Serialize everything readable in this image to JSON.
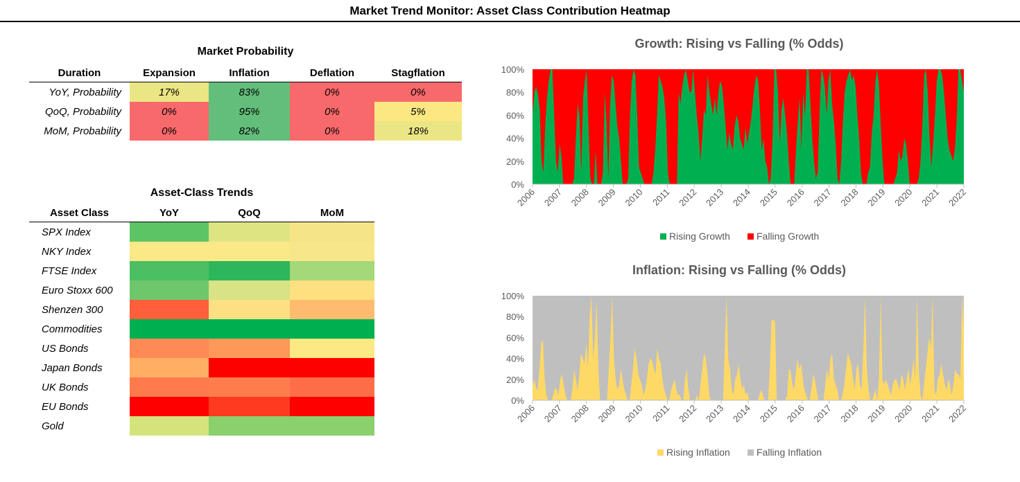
{
  "page_title": "Market Trend Monitor: Asset Class Contribution Heatmap",
  "probability_table": {
    "title": "Market Probability",
    "headers": [
      "Duration",
      "Expansion",
      "Inflation",
      "Deflation",
      "Stagflation"
    ],
    "rows": [
      {
        "label": "YoY, Probability",
        "values": [
          "17%",
          "83%",
          "0%",
          "0%"
        ],
        "colors": [
          "#ebe684",
          "#63be7b",
          "#f8696b",
          "#f8696b"
        ]
      },
      {
        "label": "QoQ, Probability",
        "values": [
          "0%",
          "95%",
          "0%",
          "5%"
        ],
        "colors": [
          "#f8696b",
          "#63be7b",
          "#f8696b",
          "#fbe883"
        ]
      },
      {
        "label": "MoM, Probability",
        "values": [
          "0%",
          "82%",
          "0%",
          "18%"
        ],
        "colors": [
          "#f8696b",
          "#63be7b",
          "#f8696b",
          "#ebe684"
        ]
      }
    ]
  },
  "trends_table": {
    "title": "Asset-Class Trends",
    "headers": [
      "Asset Class",
      "YoY",
      "QoQ",
      "MoM"
    ],
    "rows": [
      {
        "label": "SPX Index",
        "colors": [
          "#5dc466",
          "#dde583",
          "#f6e586"
        ]
      },
      {
        "label": "NKY Index",
        "colors": [
          "#fbe886",
          "#fbe886",
          "#f7e68a"
        ]
      },
      {
        "label": "FTSE Index",
        "colors": [
          "#4bbf62",
          "#2db75a",
          "#a5d878"
        ]
      },
      {
        "label": "Euro Stoxx 600",
        "colors": [
          "#6fc76b",
          "#d7e385",
          "#fde080"
        ]
      },
      {
        "label": "Shenzen 300",
        "colors": [
          "#ff5f3a",
          "#fde082",
          "#ffbb6e"
        ]
      },
      {
        "label": "Commodities",
        "colors": [
          "#00b050",
          "#00b050",
          "#00b050"
        ]
      },
      {
        "label": "US Bonds",
        "colors": [
          "#ff8a55",
          "#ff9858",
          "#fde984"
        ]
      },
      {
        "label": "Japan Bonds",
        "colors": [
          "#ffae64",
          "#ff0000",
          "#ff0000"
        ]
      },
      {
        "label": "UK Bonds",
        "colors": [
          "#ff7a4c",
          "#ff7c4d",
          "#ff6e47"
        ]
      },
      {
        "label": "EU Bonds",
        "colors": [
          "#ff0000",
          "#ff3a21",
          "#ff0000"
        ]
      },
      {
        "label": "Gold",
        "colors": [
          "#d5e37d",
          "#8ad06c",
          "#8ad06c"
        ]
      }
    ]
  },
  "chart_data": [
    {
      "type": "area",
      "title": "Growth: Rising vs Falling (% Odds)",
      "xlabel": "",
      "ylabel": "",
      "ylim": [
        0,
        100
      ],
      "ytick_labels": [
        "0%",
        "20%",
        "40%",
        "60%",
        "80%",
        "100%"
      ],
      "xtick_labels": [
        "2006",
        "2007",
        "2008",
        "2009",
        "2010",
        "2011",
        "2012",
        "2013",
        "2014",
        "2015",
        "2016",
        "2017",
        "2018",
        "2019",
        "2020",
        "2021",
        "2022"
      ],
      "x_start": 2006,
      "x_end": 2022,
      "series": [
        {
          "name": "Rising Growth",
          "color": "#00b050",
          "values": [
            62,
            80,
            85,
            78,
            65,
            20,
            10,
            50,
            75,
            90,
            100,
            100,
            60,
            20,
            10,
            35,
            25,
            0,
            0,
            0,
            0,
            0,
            0,
            5,
            40,
            70,
            60,
            10,
            75,
            90,
            100,
            50,
            5,
            0,
            0,
            30,
            0,
            0,
            0,
            10,
            80,
            55,
            5,
            70,
            95,
            90,
            70,
            50,
            40,
            20,
            0,
            0,
            0,
            5,
            60,
            90,
            100,
            95,
            60,
            15,
            10,
            5,
            0,
            0,
            0,
            0,
            0,
            10,
            30,
            60,
            95,
            90,
            85,
            75,
            55,
            10,
            0,
            0,
            0,
            0,
            0,
            80,
            70,
            85,
            95,
            100,
            90,
            80,
            80,
            100,
            80,
            60,
            45,
            20,
            40,
            65,
            60,
            95,
            80,
            70,
            60,
            75,
            60,
            80,
            90,
            85,
            70,
            50,
            30,
            45,
            35,
            30,
            50,
            60,
            55,
            40,
            35,
            30,
            50,
            35,
            45,
            55,
            70,
            85,
            95,
            90,
            65,
            30,
            40,
            20,
            15,
            0,
            5,
            40,
            100,
            100,
            80,
            35,
            65,
            75,
            60,
            45,
            20,
            0,
            0,
            0,
            30,
            55,
            75,
            30,
            80,
            60,
            100,
            100,
            70,
            40,
            20,
            5,
            10,
            60,
            100,
            95,
            85,
            60,
            90,
            100,
            70,
            55,
            35,
            5,
            0,
            20,
            55,
            80,
            90,
            95,
            100,
            90,
            95,
            85,
            60,
            40,
            10,
            0,
            0,
            0,
            10,
            15,
            45,
            60,
            90,
            100,
            85,
            50,
            20,
            0,
            0,
            0,
            0,
            0,
            0,
            5,
            10,
            30,
            20,
            25,
            40,
            35,
            20,
            0,
            0,
            0,
            0,
            0,
            5,
            20,
            50,
            95,
            100,
            80,
            40,
            15,
            35,
            60,
            90,
            100,
            100,
            95,
            80,
            60,
            40,
            30,
            25,
            20,
            30,
            55,
            100,
            100,
            90,
            80
          ]
        },
        {
          "name": "Falling Growth",
          "color": "#ff0000"
        }
      ]
    },
    {
      "type": "area",
      "title": "Inflation: Rising vs Falling  (% Odds)",
      "xlabel": "",
      "ylabel": "",
      "ylim": [
        0,
        100
      ],
      "ytick_labels": [
        "0%",
        "20%",
        "40%",
        "60%",
        "80%",
        "100%"
      ],
      "xtick_labels": [
        "2006",
        "2007",
        "2008",
        "2009",
        "2010",
        "2011",
        "2012",
        "2013",
        "2014",
        "2015",
        "2016",
        "2017",
        "2018",
        "2019",
        "2020",
        "2021",
        "2022"
      ],
      "x_start": 2006,
      "x_end": 2022,
      "series": [
        {
          "name": "Rising Inflation",
          "color": "#ffd966",
          "values": [
            15,
            20,
            12,
            10,
            30,
            55,
            57,
            20,
            5,
            0,
            0,
            0,
            5,
            12,
            10,
            5,
            20,
            25,
            15,
            5,
            0,
            0,
            0,
            10,
            30,
            20,
            10,
            25,
            45,
            40,
            35,
            55,
            30,
            80,
            100,
            40,
            60,
            95,
            30,
            0,
            0,
            0,
            0,
            0,
            30,
            60,
            100,
            40,
            20,
            10,
            15,
            30,
            20,
            10,
            5,
            0,
            0,
            15,
            30,
            50,
            40,
            25,
            20,
            15,
            5,
            10,
            20,
            35,
            40,
            38,
            30,
            25,
            50,
            40,
            35,
            20,
            10,
            5,
            0,
            0,
            10,
            15,
            20,
            10,
            5,
            5,
            0,
            0,
            20,
            30,
            10,
            0,
            0,
            0,
            0,
            5,
            0,
            15,
            30,
            45,
            40,
            25,
            5,
            0,
            0,
            0,
            0,
            0,
            0,
            0,
            0,
            50,
            100,
            40,
            30,
            10,
            5,
            20,
            25,
            35,
            20,
            10,
            15,
            5,
            8,
            0,
            0,
            0,
            0,
            0,
            0,
            5,
            10,
            5,
            0,
            0,
            0,
            30,
            77,
            77,
            75,
            0,
            0,
            0,
            0,
            0,
            0,
            5,
            30,
            28,
            15,
            10,
            25,
            40,
            30,
            35,
            20,
            10,
            5,
            0,
            0,
            10,
            25,
            20,
            10,
            0,
            0,
            0,
            0,
            15,
            30,
            20,
            40,
            45,
            20,
            15,
            10,
            0,
            0,
            5,
            15,
            30,
            45,
            40,
            35,
            20,
            10,
            30,
            35,
            15,
            10,
            50,
            100,
            30,
            10,
            0,
            0,
            5,
            10,
            0,
            20,
            100,
            20,
            15,
            20,
            15,
            10,
            5,
            15,
            20,
            20,
            15,
            10,
            25,
            20,
            10,
            20,
            30,
            15,
            25,
            40,
            20,
            100,
            30,
            5,
            0,
            15,
            30,
            45,
            60,
            50,
            100,
            10,
            5,
            20,
            25,
            35,
            25,
            15,
            10,
            20,
            15,
            5,
            15,
            30,
            25,
            25,
            20,
            100,
            70
          ]
        },
        {
          "name": "Falling Inflation",
          "color": "#bfbfbf"
        }
      ]
    }
  ]
}
